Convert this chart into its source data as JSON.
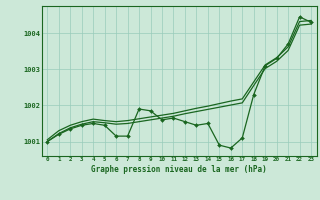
{
  "title": "Graphe pression niveau de la mer (hPa)",
  "bg_color": "#cce8d8",
  "grid_color": "#99ccbb",
  "line_color": "#1a6620",
  "marker_color": "#1a6620",
  "x_ticks": [
    0,
    1,
    2,
    3,
    4,
    5,
    6,
    7,
    8,
    9,
    10,
    11,
    12,
    13,
    14,
    15,
    16,
    17,
    18,
    19,
    20,
    21,
    22,
    23
  ],
  "ylim": [
    1000.6,
    1004.75
  ],
  "yticks": [
    1001,
    1002,
    1003,
    1004
  ],
  "line_jagged": [
    1001.0,
    1001.2,
    1001.35,
    1001.45,
    1001.5,
    1001.45,
    1001.15,
    1001.15,
    1001.9,
    1001.85,
    1001.6,
    1001.65,
    1001.55,
    1001.45,
    1001.5,
    1000.9,
    1000.82,
    1001.1,
    1002.3,
    1003.1,
    1003.3,
    1003.7,
    1004.45,
    1004.3
  ],
  "line_upper": [
    1001.05,
    1001.3,
    1001.45,
    1001.55,
    1001.62,
    1001.58,
    1001.55,
    1001.58,
    1001.63,
    1001.68,
    1001.73,
    1001.78,
    1001.85,
    1001.92,
    1001.98,
    1002.05,
    1002.12,
    1002.18,
    1002.65,
    1003.12,
    1003.32,
    1003.62,
    1004.32,
    1004.35
  ],
  "line_lower": [
    1001.0,
    1001.22,
    1001.38,
    1001.48,
    1001.55,
    1001.52,
    1001.48,
    1001.5,
    1001.55,
    1001.6,
    1001.65,
    1001.7,
    1001.77,
    1001.83,
    1001.89,
    1001.95,
    1002.01,
    1002.07,
    1002.55,
    1003.02,
    1003.22,
    1003.52,
    1004.22,
    1004.25
  ]
}
